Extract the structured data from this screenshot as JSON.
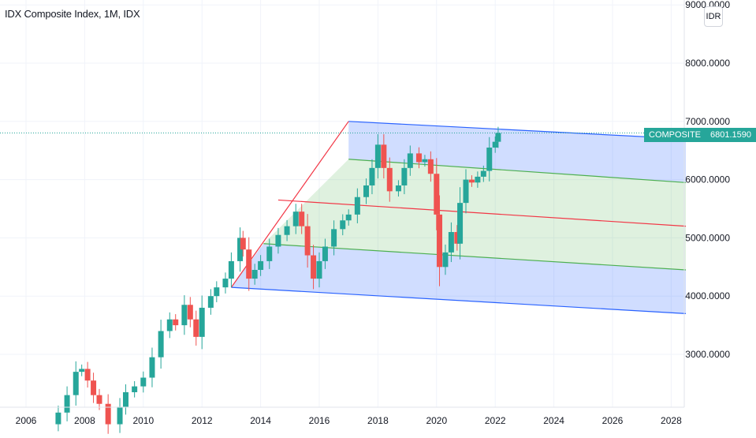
{
  "header": {
    "title": "IDX Composite Index, 1M, IDX"
  },
  "currency_label": "IDR",
  "last_price": {
    "symbol": "COMPOSITE",
    "value": "6801.1590"
  },
  "colors": {
    "up": "#26a69a",
    "down": "#ef5350",
    "grid": "#f0f3fa",
    "fork_outer": "#2962ff",
    "fork_inner": "#4caf50",
    "median": "#f23645"
  },
  "chart_data": {
    "type": "candlestick",
    "title": "IDX Composite Index, 1M, IDX",
    "xlabel": "",
    "ylabel": "",
    "x_tick_labels": [
      "2006",
      "2008",
      "2010",
      "2012",
      "2014",
      "2016",
      "2018",
      "2020",
      "2022",
      "2024",
      "2026",
      "2028"
    ],
    "y_tick_labels": [
      "3000.0000",
      "4000.0000",
      "5000.0000",
      "6000.0000",
      "7000.0000",
      "8000.0000",
      "9000.0000"
    ],
    "ylim": [
      2100,
      9100
    ],
    "xlim": [
      2005.3,
      2028.5
    ],
    "grid": true,
    "last_value": 6801.159,
    "approx_close_series": [
      {
        "x": 2007.1,
        "o": 1800,
        "c": 2000
      },
      {
        "x": 2007.4,
        "o": 2000,
        "c": 2300
      },
      {
        "x": 2007.7,
        "o": 2300,
        "c": 2700
      },
      {
        "x": 2007.9,
        "o": 2700,
        "c": 2750
      },
      {
        "x": 2008.1,
        "o": 2750,
        "c": 2550
      },
      {
        "x": 2008.3,
        "o": 2550,
        "c": 2300
      },
      {
        "x": 2008.5,
        "o": 2300,
        "c": 2150
      },
      {
        "x": 2008.8,
        "o": 2150,
        "c": 1800
      },
      {
        "x": 2009.2,
        "o": 1800,
        "c": 2100
      },
      {
        "x": 2009.4,
        "o": 2100,
        "c": 2350
      },
      {
        "x": 2009.7,
        "o": 2350,
        "c": 2450
      },
      {
        "x": 2010.0,
        "o": 2450,
        "c": 2600
      },
      {
        "x": 2010.3,
        "o": 2600,
        "c": 2950
      },
      {
        "x": 2010.6,
        "o": 2950,
        "c": 3400
      },
      {
        "x": 2010.9,
        "o": 3400,
        "c": 3600
      },
      {
        "x": 2011.1,
        "o": 3600,
        "c": 3500
      },
      {
        "x": 2011.4,
        "o": 3500,
        "c": 3850
      },
      {
        "x": 2011.6,
        "o": 3850,
        "c": 3600
      },
      {
        "x": 2011.8,
        "o": 3600,
        "c": 3300
      },
      {
        "x": 2012.0,
        "o": 3300,
        "c": 3800
      },
      {
        "x": 2012.3,
        "o": 3800,
        "c": 4000
      },
      {
        "x": 2012.5,
        "o": 4000,
        "c": 4150
      },
      {
        "x": 2012.8,
        "o": 4150,
        "c": 4300
      },
      {
        "x": 2013.0,
        "o": 4300,
        "c": 4600
      },
      {
        "x": 2013.3,
        "o": 4600,
        "c": 5000
      },
      {
        "x": 2013.4,
        "o": 5000,
        "c": 4800
      },
      {
        "x": 2013.6,
        "o": 4800,
        "c": 4300
      },
      {
        "x": 2013.8,
        "o": 4300,
        "c": 4450
      },
      {
        "x": 2014.0,
        "o": 4450,
        "c": 4600
      },
      {
        "x": 2014.3,
        "o": 4600,
        "c": 4850
      },
      {
        "x": 2014.6,
        "o": 4850,
        "c": 5050
      },
      {
        "x": 2014.9,
        "o": 5050,
        "c": 5200
      },
      {
        "x": 2015.2,
        "o": 5200,
        "c": 5450
      },
      {
        "x": 2015.4,
        "o": 5450,
        "c": 5200
      },
      {
        "x": 2015.6,
        "o": 5200,
        "c": 4700
      },
      {
        "x": 2015.8,
        "o": 4700,
        "c": 4300
      },
      {
        "x": 2016.0,
        "o": 4300,
        "c": 4600
      },
      {
        "x": 2016.2,
        "o": 4600,
        "c": 4850
      },
      {
        "x": 2016.5,
        "o": 4850,
        "c": 5150
      },
      {
        "x": 2016.8,
        "o": 5150,
        "c": 5300
      },
      {
        "x": 2017.0,
        "o": 5300,
        "c": 5400
      },
      {
        "x": 2017.3,
        "o": 5400,
        "c": 5700
      },
      {
        "x": 2017.6,
        "o": 5700,
        "c": 5900
      },
      {
        "x": 2017.8,
        "o": 5900,
        "c": 6200
      },
      {
        "x": 2018.0,
        "o": 6200,
        "c": 6600
      },
      {
        "x": 2018.2,
        "o": 6600,
        "c": 6200
      },
      {
        "x": 2018.4,
        "o": 6200,
        "c": 5800
      },
      {
        "x": 2018.7,
        "o": 5800,
        "c": 5900
      },
      {
        "x": 2018.9,
        "o": 5900,
        "c": 6200
      },
      {
        "x": 2019.1,
        "o": 6200,
        "c": 6450
      },
      {
        "x": 2019.4,
        "o": 6450,
        "c": 6300
      },
      {
        "x": 2019.6,
        "o": 6300,
        "c": 6350
      },
      {
        "x": 2019.8,
        "o": 6350,
        "c": 6100
      },
      {
        "x": 2020.0,
        "o": 6100,
        "c": 5400
      },
      {
        "x": 2020.1,
        "o": 5400,
        "c": 4500
      },
      {
        "x": 2020.3,
        "o": 4500,
        "c": 4750
      },
      {
        "x": 2020.5,
        "o": 4750,
        "c": 5100
      },
      {
        "x": 2020.7,
        "o": 5100,
        "c": 4900
      },
      {
        "x": 2020.8,
        "o": 4900,
        "c": 5600
      },
      {
        "x": 2021.0,
        "o": 5600,
        "c": 6000
      },
      {
        "x": 2021.2,
        "o": 6000,
        "c": 5950
      },
      {
        "x": 2021.4,
        "o": 5950,
        "c": 6050
      },
      {
        "x": 2021.6,
        "o": 6050,
        "c": 6150
      },
      {
        "x": 2021.8,
        "o": 6150,
        "c": 6550
      },
      {
        "x": 2022.0,
        "o": 6550,
        "c": 6650
      },
      {
        "x": 2022.1,
        "o": 6650,
        "c": 6801
      }
    ],
    "pitchfork": {
      "median": [
        [
          2014.6,
          5650
        ],
        [
          2028.5,
          5200
        ]
      ],
      "upper_outer": [
        [
          2017.0,
          7000
        ],
        [
          2028.5,
          6700
        ]
      ],
      "upper_inner": [
        [
          2017.0,
          6350
        ],
        [
          2028.5,
          5950
        ]
      ],
      "lower_inner": [
        [
          2014.1,
          4900
        ],
        [
          2028.5,
          4450
        ]
      ],
      "lower_outer": [
        [
          2013.0,
          4150
        ],
        [
          2028.5,
          3700
        ]
      ],
      "handle": [
        [
          2013.0,
          4150
        ],
        [
          2017.0,
          7000
        ]
      ]
    }
  }
}
